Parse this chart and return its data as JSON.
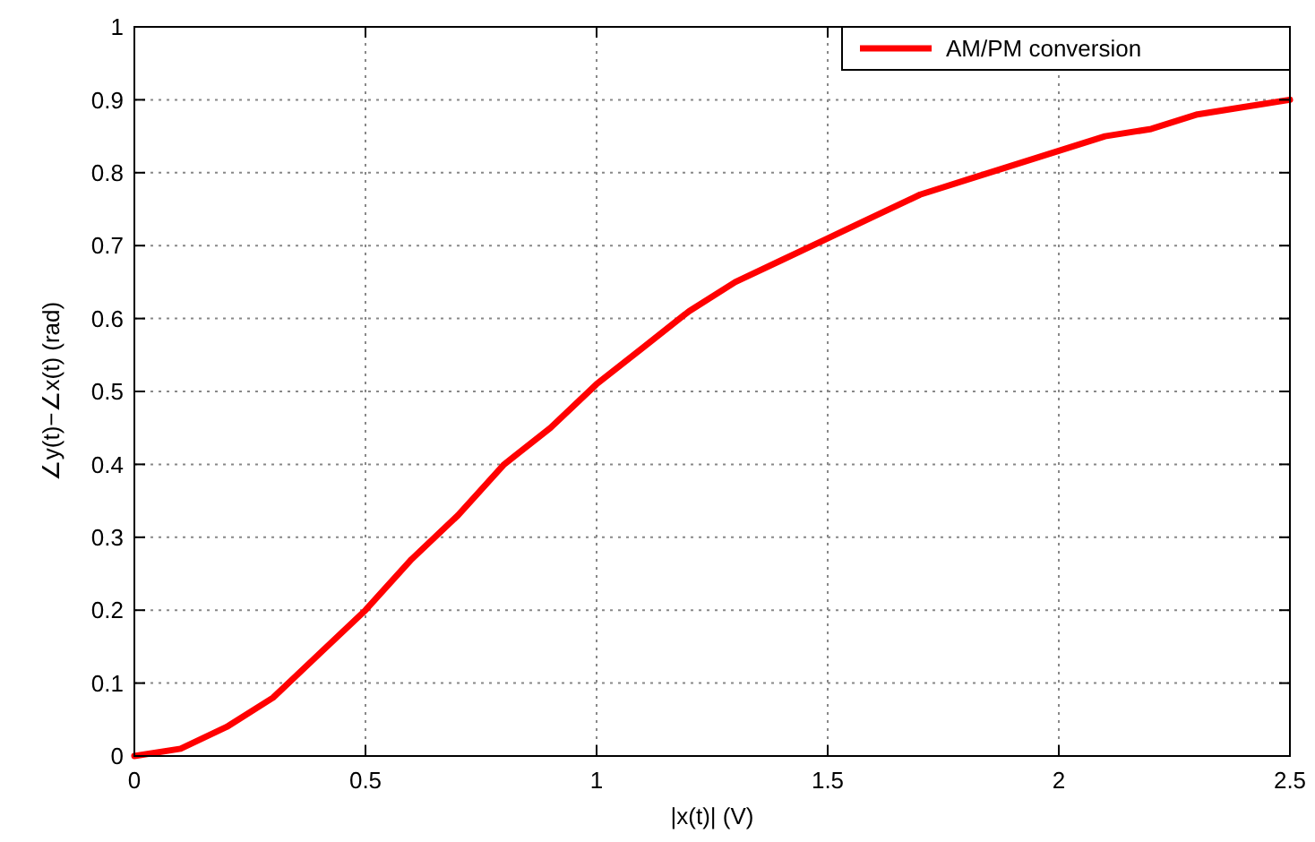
{
  "chart_data": {
    "type": "line",
    "xlabel": "|x(t)| (V)",
    "ylabel": "∠y(t)−∠x(t) (rad)",
    "x": [
      0,
      0.1,
      0.2,
      0.3,
      0.4,
      0.5,
      0.6,
      0.7,
      0.8,
      0.9,
      1,
      1.1,
      1.2,
      1.3,
      1.4,
      1.5,
      1.6,
      1.7,
      1.8,
      1.9,
      2,
      2.1,
      2.2,
      2.3,
      2.4,
      2.5
    ],
    "series": [
      {
        "name": "AM/PM conversion",
        "color": "#ff0000",
        "values": [
          0,
          0.01,
          0.04,
          0.08,
          0.14,
          0.2,
          0.27,
          0.33,
          0.4,
          0.45,
          0.51,
          0.56,
          0.61,
          0.65,
          0.68,
          0.71,
          0.74,
          0.77,
          0.79,
          0.81,
          0.83,
          0.85,
          0.86,
          0.88,
          0.89,
          0.9
        ]
      }
    ],
    "xlim": [
      0,
      2.5
    ],
    "xticks": [
      0,
      0.5,
      1,
      1.5,
      2,
      2.5
    ],
    "ylim": [
      0,
      1
    ],
    "yticks": [
      0,
      0.1,
      0.2,
      0.3,
      0.4,
      0.5,
      0.6,
      0.7,
      0.8,
      0.9,
      1
    ],
    "grid": true,
    "legend": "top right",
    "line_style": "solid",
    "marker": "none"
  }
}
